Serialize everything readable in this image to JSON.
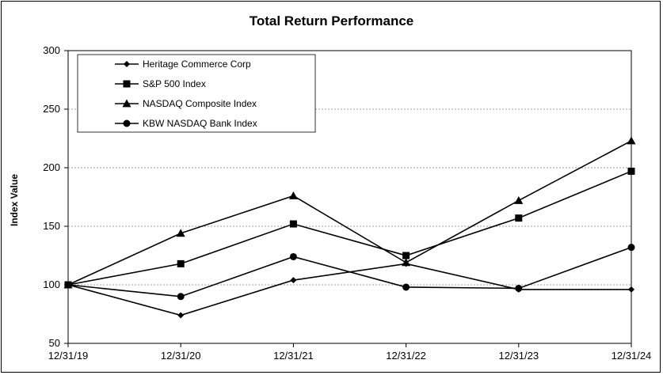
{
  "chart_data": {
    "type": "line",
    "title": "Total Return Performance",
    "xlabel": "",
    "ylabel": "Index Value",
    "categories": [
      "12/31/19",
      "12/31/20",
      "12/31/21",
      "12/31/22",
      "12/31/23",
      "12/31/24"
    ],
    "ylim": [
      50,
      300
    ],
    "yticks": [
      50,
      100,
      150,
      200,
      250,
      300
    ],
    "grid": "horizontal",
    "legend_position": "top-left",
    "series": [
      {
        "name": "Heritage Commerce Corp",
        "marker": "diamond",
        "values": [
          100,
          74,
          104,
          118,
          96,
          96
        ]
      },
      {
        "name": "S&P 500 Index",
        "marker": "square",
        "values": [
          100,
          118,
          152,
          125,
          157,
          197
        ]
      },
      {
        "name": "NASDAQ Composite Index",
        "marker": "triangle",
        "values": [
          100,
          144,
          176,
          119,
          172,
          223
        ]
      },
      {
        "name": "KBW NASDAQ Bank Index",
        "marker": "circle",
        "values": [
          100,
          90,
          124,
          98,
          97,
          132
        ]
      }
    ],
    "line_color": "#000000",
    "grid_color": "#808080"
  }
}
